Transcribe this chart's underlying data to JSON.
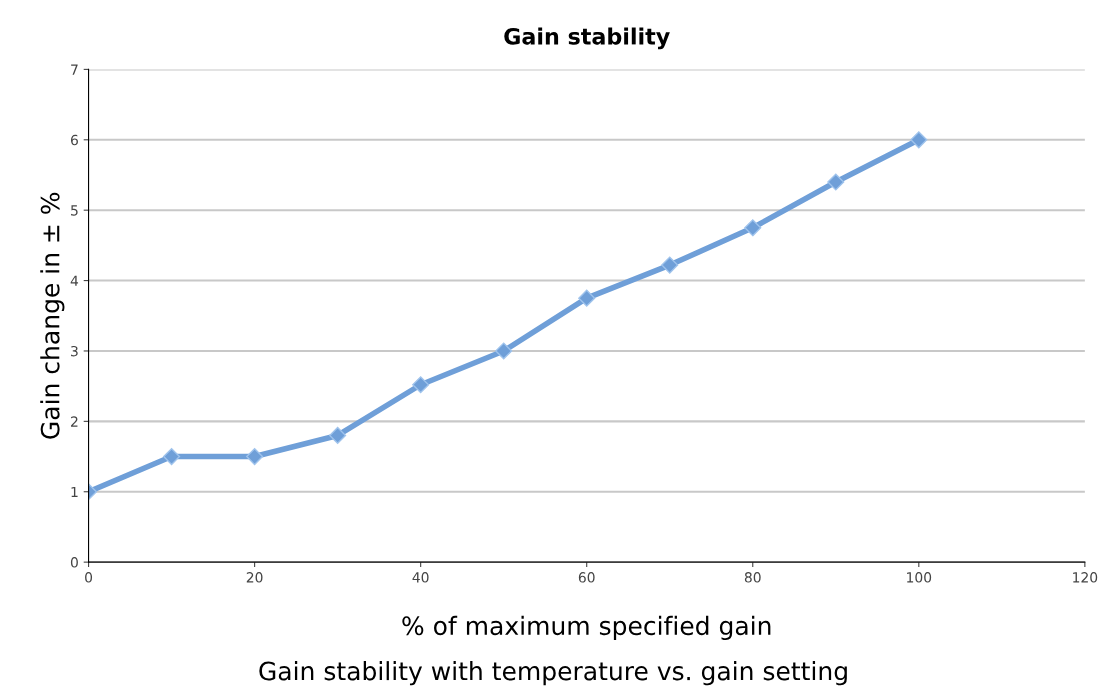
{
  "chart_data": {
    "type": "line",
    "title": "Gain stability",
    "xlabel": "% of maximum specified gain",
    "ylabel": "Gain change in ± %",
    "annotations": [
      "Gain stability with temperature vs. gain setting"
    ],
    "x": [
      0,
      10,
      20,
      30,
      40,
      50,
      60,
      70,
      80,
      90,
      100
    ],
    "series": [
      {
        "color": "#6f9fd8",
        "values": [
          1.0,
          1.5,
          1.5,
          1.8,
          2.52,
          3.0,
          3.75,
          4.22,
          4.75,
          5.4,
          6.0
        ]
      }
    ],
    "xlim": [
      0,
      120
    ],
    "xticks": [
      0,
      20,
      40,
      60,
      80,
      100,
      120
    ],
    "ylim": [
      0,
      7
    ],
    "yticks": [
      0,
      1,
      2,
      3,
      4,
      5,
      6,
      7
    ],
    "grid": "y",
    "marker": "diamond",
    "line_style": "solid",
    "legend": false
  }
}
